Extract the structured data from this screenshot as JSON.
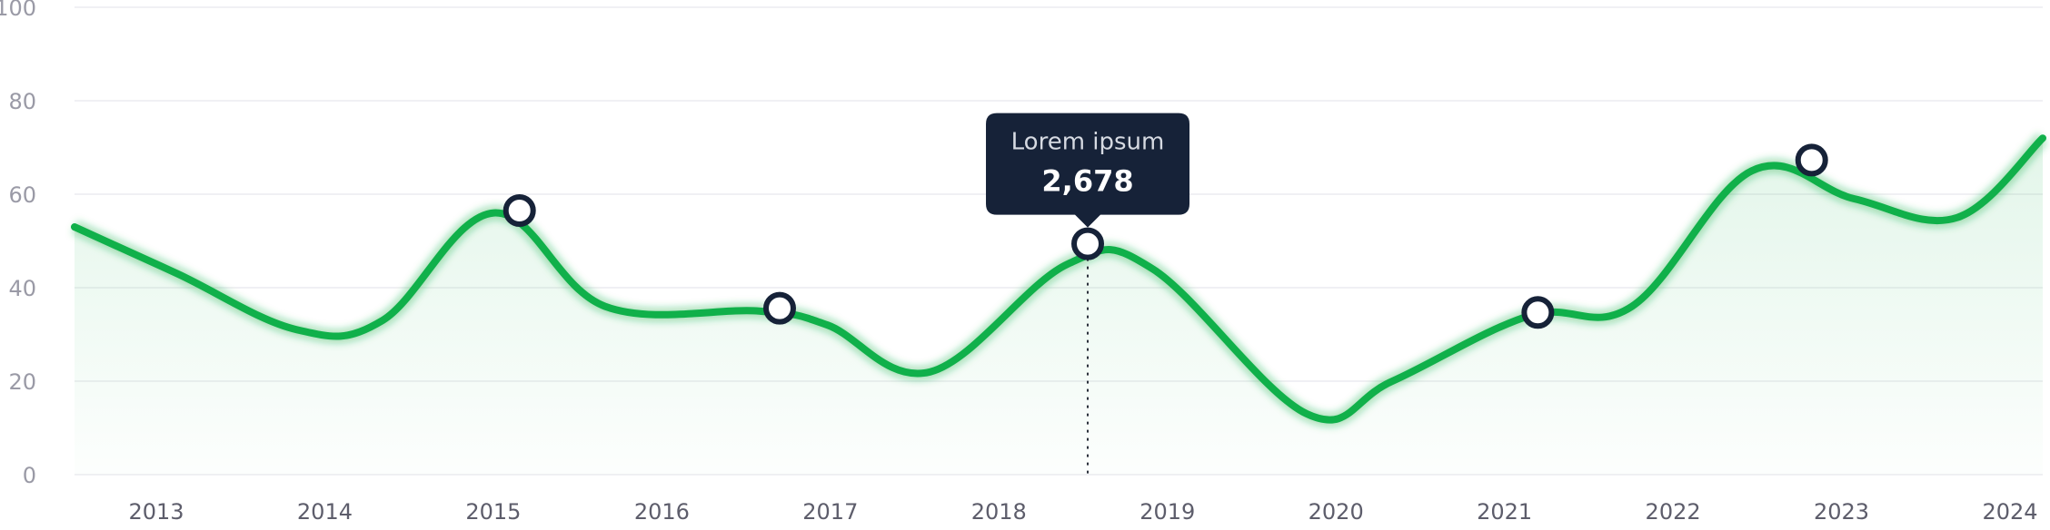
{
  "chart_data": {
    "type": "area",
    "title": "",
    "xlabel": "",
    "ylabel": "",
    "ylim": [
      0,
      100
    ],
    "yticks": [
      0,
      20,
      40,
      60,
      80,
      100
    ],
    "xticks": [
      "2013",
      "2014",
      "2015",
      "2016",
      "2017",
      "2018",
      "2019",
      "2020",
      "2021",
      "2022",
      "2023",
      "2024"
    ],
    "xlim": [
      2012.5,
      2024.0
    ],
    "grid": true,
    "colors": {
      "line": "#10b04a",
      "area": "#10b04a",
      "marker_stroke": "#162238",
      "tooltip_bg": "#162238"
    },
    "series": [
      {
        "x": [
          2012.5,
          2013.1,
          2013.8,
          2014.3,
          2014.95,
          2015.6,
          2016.5,
          2016.9,
          2017.5,
          2018.3,
          2018.8,
          2019.7,
          2020.2,
          2021.0,
          2021.6,
          2022.3,
          2022.9,
          2023.5,
          2024.0
        ],
        "y": [
          53,
          43,
          31,
          33,
          56,
          36,
          35,
          32,
          22,
          45,
          44,
          13,
          20,
          34,
          36,
          65,
          59,
          55,
          72
        ]
      }
    ],
    "markers": [
      {
        "x": 2015.1,
        "y": 56.5
      },
      {
        "x": 2016.62,
        "y": 35.6
      },
      {
        "x": 2018.42,
        "y": 49.4
      },
      {
        "x": 2021.05,
        "y": 34.7
      },
      {
        "x": 2022.65,
        "y": 67.3
      }
    ],
    "tooltip": {
      "title": "Lorem ipsum",
      "value": "2,678",
      "x": 2018.42,
      "y": 49.4
    }
  }
}
